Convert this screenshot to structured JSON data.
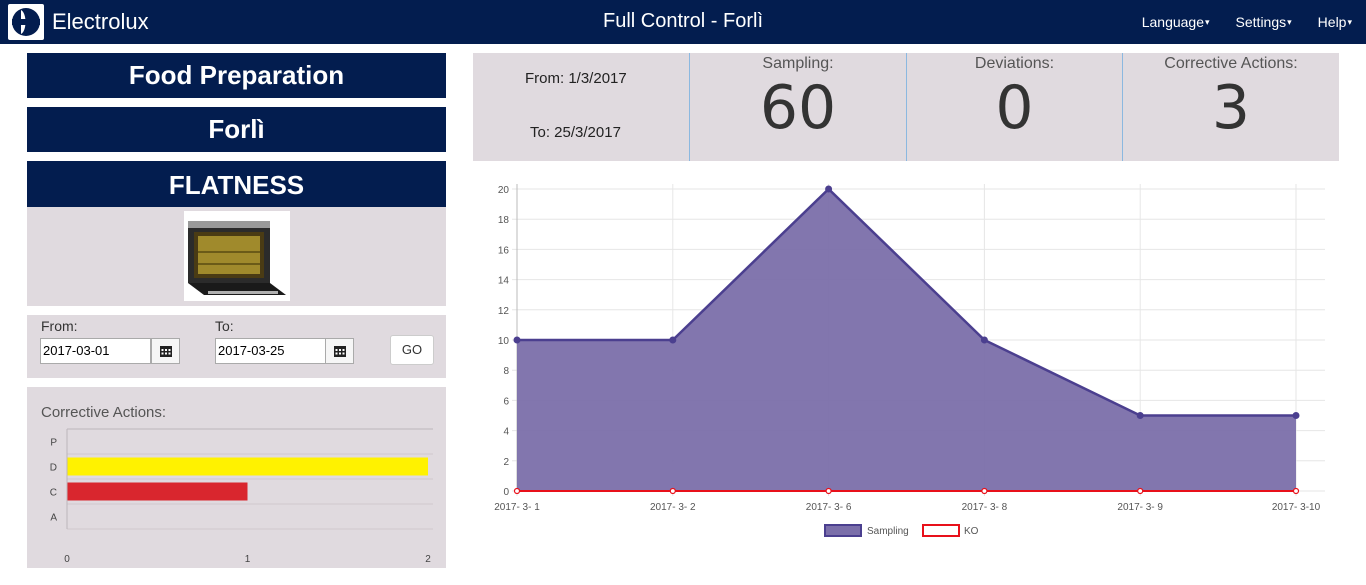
{
  "navbar": {
    "brand": "Electrolux",
    "title": "Full Control - Forlì",
    "menu": [
      "Language",
      "Settings",
      "Help"
    ]
  },
  "left": {
    "banners": [
      "Food Preparation",
      "Forlì",
      "FLATNESS"
    ],
    "from_label": "From:",
    "to_label": "To:",
    "from_value": "2017-03-01",
    "to_value": "2017-03-25",
    "go_label": "GO",
    "corrective_title": "Corrective Actions:"
  },
  "stats": {
    "from": "From: 1/3/2017",
    "to": "To: 25/3/2017",
    "sampling_label": "Sampling:",
    "sampling_value": "60",
    "deviations_label": "Deviations:",
    "deviations_value": "0",
    "corrective_label": "Corrective Actions:",
    "corrective_value": "3"
  },
  "colors": {
    "navy": "#031d4f",
    "panel": "#e0dadf",
    "sampling_fill": "#7b6faa",
    "sampling_line": "#4b3f8f",
    "ko": "#e8101a",
    "bar_d": "#fff200",
    "bar_c": "#d9262e"
  },
  "chart_data": [
    {
      "type": "bar",
      "orientation": "horizontal",
      "categories": [
        "P",
        "D",
        "C",
        "A"
      ],
      "values": [
        0,
        2,
        1,
        0
      ],
      "xlim": [
        0,
        2
      ],
      "xticks": [
        "0",
        "1",
        "2"
      ],
      "bar_colors": [
        "#ffffff",
        "#fff200",
        "#d9262e",
        "#ffffff"
      ]
    },
    {
      "type": "area",
      "categories": [
        "2017- 3- 1",
        "2017- 3- 2",
        "2017- 3- 6",
        "2017- 3- 8",
        "2017- 3- 9",
        "2017- 3-10"
      ],
      "series": [
        {
          "name": "Sampling",
          "values": [
            10,
            10,
            20,
            10,
            5,
            5
          ]
        },
        {
          "name": "KO",
          "values": [
            0,
            0,
            0,
            0,
            0,
            0
          ]
        }
      ],
      "ylim": [
        0,
        20
      ],
      "yticks": [
        "0",
        "2",
        "4",
        "6",
        "8",
        "10",
        "12",
        "14",
        "16",
        "18",
        "20"
      ],
      "grid": true,
      "legend": "bottom"
    }
  ]
}
